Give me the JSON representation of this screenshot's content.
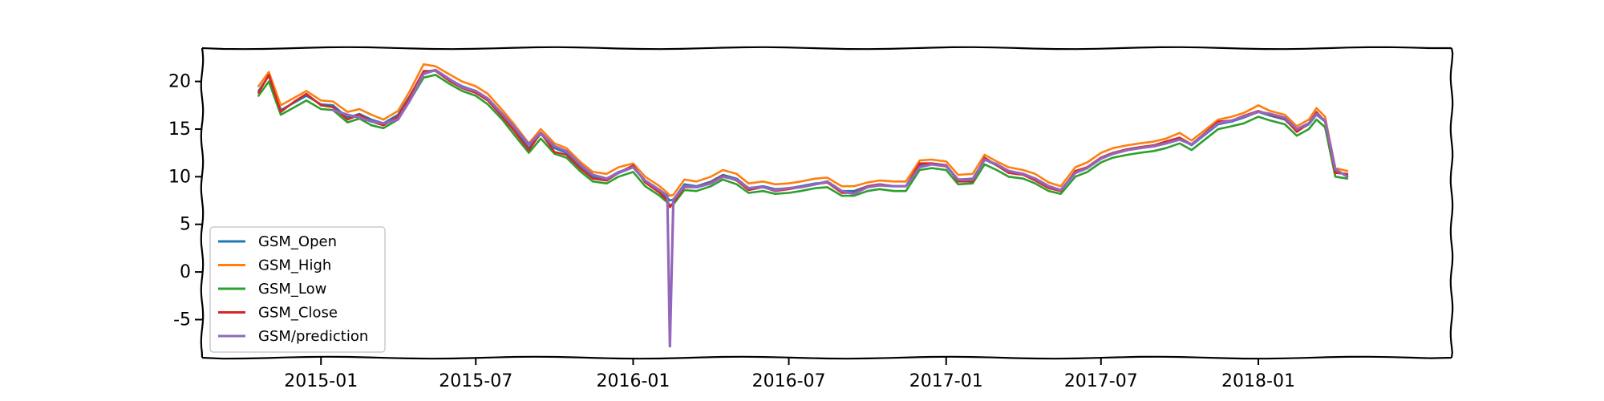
{
  "chart_data": {
    "type": "line",
    "title": "",
    "xlabel": "",
    "ylabel": "",
    "style": "xkcd-sketch",
    "x_ticks": [
      "2015-01",
      "2015-07",
      "2016-01",
      "2016-07",
      "2017-01",
      "2017-07",
      "2018-01"
    ],
    "y_ticks": [
      20,
      15,
      10,
      5,
      0,
      -5
    ],
    "xlim": [
      "2014-08-15",
      "2018-08-15"
    ],
    "ylim": [
      -9,
      23.5
    ],
    "grid": false,
    "legend": {
      "position": "lower-left"
    },
    "dates": [
      "2014-10-20",
      "2014-11-01",
      "2014-11-15",
      "2014-12-01",
      "2014-12-15",
      "2015-01-01",
      "2015-01-15",
      "2015-02-01",
      "2015-02-15",
      "2015-03-01",
      "2015-03-15",
      "2015-04-01",
      "2015-04-15",
      "2015-05-01",
      "2015-05-15",
      "2015-06-01",
      "2015-06-15",
      "2015-07-01",
      "2015-07-15",
      "2015-08-01",
      "2015-08-15",
      "2015-09-01",
      "2015-09-15",
      "2015-10-01",
      "2015-10-15",
      "2015-11-01",
      "2015-11-15",
      "2015-12-01",
      "2015-12-15",
      "2016-01-01",
      "2016-01-15",
      "2016-02-01",
      "2016-02-10",
      "2016-02-13",
      "2016-02-17",
      "2016-03-01",
      "2016-03-15",
      "2016-04-01",
      "2016-04-15",
      "2016-05-01",
      "2016-05-15",
      "2016-06-01",
      "2016-06-15",
      "2016-07-01",
      "2016-07-15",
      "2016-08-01",
      "2016-08-15",
      "2016-09-01",
      "2016-09-15",
      "2016-10-01",
      "2016-10-15",
      "2016-11-01",
      "2016-11-15",
      "2016-12-01",
      "2016-12-15",
      "2017-01-01",
      "2017-01-15",
      "2017-02-01",
      "2017-02-15",
      "2017-03-01",
      "2017-03-15",
      "2017-04-01",
      "2017-04-15",
      "2017-05-01",
      "2017-05-15",
      "2017-06-01",
      "2017-06-15",
      "2017-07-01",
      "2017-07-15",
      "2017-08-01",
      "2017-08-15",
      "2017-09-01",
      "2017-09-15",
      "2017-10-01",
      "2017-10-15",
      "2017-11-01",
      "2017-11-15",
      "2017-12-01",
      "2017-12-15",
      "2018-01-01",
      "2018-01-15",
      "2018-02-01",
      "2018-02-15",
      "2018-03-01",
      "2018-03-10",
      "2018-03-20",
      "2018-04-01",
      "2018-04-15"
    ],
    "series": [
      {
        "name": "GSM_Open",
        "color": "#1f77b4",
        "values": [
          19.0,
          20.6,
          17.0,
          17.8,
          18.5,
          17.6,
          17.5,
          16.2,
          16.6,
          16.0,
          15.6,
          16.5,
          18.5,
          21.0,
          21.2,
          20.2,
          19.5,
          19.0,
          18.2,
          16.5,
          15.0,
          13.0,
          14.5,
          13.0,
          12.5,
          11.0,
          10.0,
          9.8,
          10.5,
          11.0,
          9.5,
          8.5,
          7.8,
          7.5,
          7.6,
          9.2,
          9.0,
          9.5,
          10.2,
          9.8,
          8.8,
          9.0,
          8.7,
          8.8,
          9.0,
          9.3,
          9.4,
          8.5,
          8.5,
          9.0,
          9.2,
          9.0,
          9.0,
          11.2,
          11.4,
          11.2,
          9.7,
          9.8,
          11.8,
          11.2,
          10.5,
          10.3,
          9.8,
          9.0,
          8.6,
          10.5,
          11.0,
          12.0,
          12.5,
          12.8,
          13.0,
          13.2,
          13.5,
          14.0,
          13.3,
          14.5,
          15.5,
          15.8,
          16.2,
          16.8,
          16.4,
          16.0,
          14.8,
          15.5,
          16.5,
          15.8,
          10.5,
          10.2
        ]
      },
      {
        "name": "GSM_High",
        "color": "#ff7f0e",
        "values": [
          19.5,
          21.0,
          17.5,
          18.3,
          19.0,
          18.0,
          17.9,
          16.8,
          17.1,
          16.5,
          16.0,
          16.9,
          19.0,
          21.8,
          21.6,
          20.7,
          20.0,
          19.5,
          18.7,
          17.0,
          15.5,
          13.5,
          15.0,
          13.5,
          13.0,
          11.5,
          10.5,
          10.3,
          11.0,
          11.4,
          10.0,
          9.0,
          8.3,
          8.0,
          8.1,
          9.7,
          9.5,
          10.0,
          10.7,
          10.3,
          9.3,
          9.5,
          9.2,
          9.3,
          9.5,
          9.8,
          9.9,
          9.0,
          9.0,
          9.4,
          9.6,
          9.5,
          9.5,
          11.7,
          11.8,
          11.6,
          10.2,
          10.3,
          12.3,
          11.6,
          11.0,
          10.7,
          10.3,
          9.4,
          9.0,
          11.0,
          11.5,
          12.5,
          13.0,
          13.3,
          13.5,
          13.7,
          14.0,
          14.6,
          13.8,
          15.0,
          16.0,
          16.3,
          16.7,
          17.5,
          16.9,
          16.5,
          15.3,
          16.0,
          17.2,
          16.3,
          10.9,
          10.6
        ]
      },
      {
        "name": "GSM_Low",
        "color": "#2ca02c",
        "values": [
          18.5,
          20.0,
          16.5,
          17.3,
          18.0,
          17.1,
          17.0,
          15.7,
          16.1,
          15.4,
          15.1,
          16.0,
          18.0,
          20.4,
          20.7,
          19.7,
          19.0,
          18.5,
          17.6,
          16.0,
          14.4,
          12.5,
          14.0,
          12.4,
          12.0,
          10.5,
          9.5,
          9.3,
          10.0,
          10.5,
          9.0,
          8.0,
          7.3,
          7.0,
          7.1,
          8.6,
          8.5,
          9.0,
          9.7,
          9.2,
          8.3,
          8.5,
          8.2,
          8.3,
          8.5,
          8.8,
          8.9,
          8.0,
          8.0,
          8.5,
          8.7,
          8.5,
          8.5,
          10.7,
          10.9,
          10.7,
          9.2,
          9.3,
          11.3,
          10.7,
          10.0,
          9.8,
          9.3,
          8.5,
          8.2,
          10.0,
          10.5,
          11.5,
          12.0,
          12.3,
          12.5,
          12.7,
          13.0,
          13.5,
          12.8,
          14.0,
          15.0,
          15.3,
          15.6,
          16.3,
          15.9,
          15.5,
          14.3,
          15.0,
          16.0,
          15.2,
          10.0,
          9.8
        ]
      },
      {
        "name": "GSM_Close",
        "color": "#d62728",
        "values": [
          18.8,
          20.7,
          16.8,
          17.9,
          18.7,
          17.5,
          17.3,
          16.0,
          16.5,
          15.8,
          15.4,
          16.3,
          18.4,
          21.1,
          21.1,
          20.0,
          19.3,
          18.8,
          18.0,
          16.3,
          14.8,
          12.8,
          14.6,
          12.6,
          12.3,
          10.8,
          9.8,
          9.6,
          10.4,
          11.2,
          9.4,
          8.3,
          7.5,
          6.8,
          7.3,
          8.9,
          8.9,
          9.4,
          10.1,
          9.6,
          8.6,
          8.9,
          8.5,
          8.7,
          8.9,
          9.2,
          9.4,
          8.3,
          8.3,
          9.0,
          9.2,
          9.0,
          9.0,
          11.4,
          11.4,
          11.2,
          9.5,
          9.5,
          12.0,
          11.2,
          10.4,
          10.2,
          9.6,
          8.8,
          8.5,
          10.6,
          11.0,
          12.0,
          12.5,
          12.9,
          13.1,
          13.3,
          13.7,
          14.1,
          13.4,
          14.7,
          15.8,
          15.9,
          16.4,
          16.9,
          16.5,
          16.1,
          14.7,
          15.6,
          16.8,
          15.8,
          10.4,
          10.3
        ]
      },
      {
        "name": "GSM/prediction",
        "color": "#9467bd",
        "values": [
          null,
          null,
          null,
          null,
          null,
          null,
          17.0,
          16.5,
          16.2,
          15.8,
          15.6,
          16.0,
          18.0,
          20.8,
          21.2,
          20.2,
          19.4,
          19.0,
          18.2,
          16.6,
          15.2,
          13.4,
          14.6,
          13.2,
          12.7,
          11.2,
          10.2,
          9.8,
          10.4,
          11.0,
          9.6,
          8.6,
          8.0,
          -7.8,
          7.6,
          9.0,
          8.9,
          9.3,
          10.0,
          9.7,
          8.8,
          8.9,
          8.6,
          8.8,
          8.9,
          9.2,
          9.5,
          8.5,
          8.2,
          8.9,
          9.1,
          9.0,
          9.0,
          11.0,
          11.3,
          11.1,
          9.7,
          9.7,
          11.8,
          11.3,
          10.6,
          10.3,
          9.8,
          9.0,
          8.6,
          10.4,
          10.9,
          11.9,
          12.4,
          12.8,
          13.0,
          13.2,
          13.5,
          13.9,
          13.4,
          14.6,
          15.6,
          15.9,
          16.3,
          16.8,
          16.6,
          16.2,
          15.0,
          15.6,
          16.6,
          15.9,
          10.8,
          10.0
        ]
      }
    ]
  }
}
